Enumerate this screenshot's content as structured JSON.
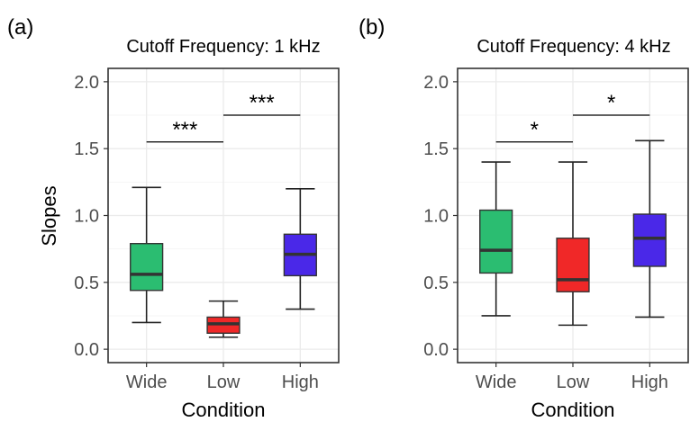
{
  "panels": [
    {
      "label": "(a)",
      "title": "Cutoff Frequency: 1 kHz"
    },
    {
      "label": "(b)",
      "title": "Cutoff Frequency: 4 kHz"
    }
  ],
  "shared": {
    "ylabel": "Slopes",
    "xlabel": "Condition"
  },
  "colors": {
    "Wide": "#2bbd71",
    "Low": "#f02828",
    "High": "#4a28e8",
    "median": "#333333",
    "frame": "#333333",
    "grid": "#ebebeb"
  },
  "chart_data": [
    {
      "type": "box",
      "title": "Cutoff Frequency: 1 kHz",
      "xlabel": "Condition",
      "ylabel": "Slopes",
      "categories": [
        "Wide",
        "Low",
        "High"
      ],
      "ylim": [
        -0.1,
        2.1
      ],
      "yticks": [
        "0.0",
        "0.5",
        "1.0",
        "1.5",
        "2.0"
      ],
      "grid": true,
      "boxes": [
        {
          "category": "Wide",
          "whisker_low": 0.2,
          "q1": 0.44,
          "median": 0.56,
          "q3": 0.79,
          "whisker_high": 1.21
        },
        {
          "category": "Low",
          "whisker_low": 0.09,
          "q1": 0.12,
          "median": 0.19,
          "q3": 0.24,
          "whisker_high": 0.36
        },
        {
          "category": "High",
          "whisker_low": 0.3,
          "q1": 0.55,
          "median": 0.71,
          "q3": 0.86,
          "whisker_high": 1.2
        }
      ],
      "significance": [
        {
          "from": "Wide",
          "to": "Low",
          "y": 1.55,
          "label": "***"
        },
        {
          "from": "Low",
          "to": "High",
          "y": 1.75,
          "label": "***"
        }
      ]
    },
    {
      "type": "box",
      "title": "Cutoff Frequency: 4 kHz",
      "xlabel": "Condition",
      "ylabel": "",
      "categories": [
        "Wide",
        "Low",
        "High"
      ],
      "ylim": [
        -0.1,
        2.1
      ],
      "yticks": [
        "0.0",
        "0.5",
        "1.0",
        "1.5",
        "2.0"
      ],
      "grid": true,
      "boxes": [
        {
          "category": "Wide",
          "whisker_low": 0.25,
          "q1": 0.57,
          "median": 0.74,
          "q3": 1.04,
          "whisker_high": 1.4
        },
        {
          "category": "Low",
          "whisker_low": 0.18,
          "q1": 0.43,
          "median": 0.52,
          "q3": 0.83,
          "whisker_high": 1.4
        },
        {
          "category": "High",
          "whisker_low": 0.24,
          "q1": 0.62,
          "median": 0.83,
          "q3": 1.01,
          "whisker_high": 1.56
        }
      ],
      "significance": [
        {
          "from": "Wide",
          "to": "Low",
          "y": 1.55,
          "label": "*"
        },
        {
          "from": "Low",
          "to": "High",
          "y": 1.75,
          "label": "*"
        }
      ]
    }
  ]
}
